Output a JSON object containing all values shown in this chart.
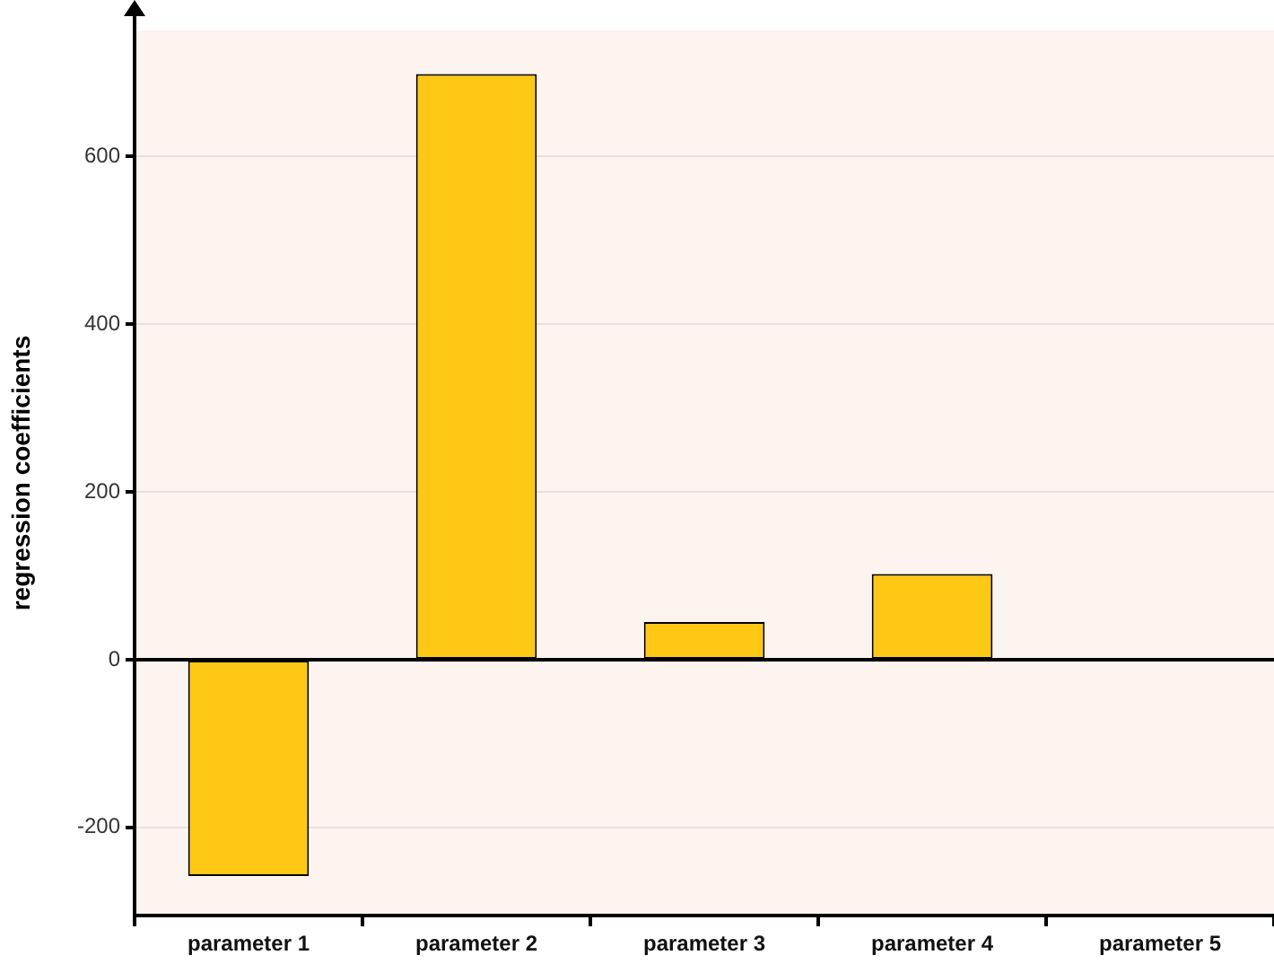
{
  "chart_data": {
    "type": "bar",
    "ylabel": "regression coefficients",
    "categories": [
      "parameter 1",
      "parameter 2",
      "parameter 3",
      "parameter 4",
      "parameter 5"
    ],
    "values": [
      -258,
      698,
      45,
      102,
      0
    ],
    "color": "#fec814",
    "ylim": [
      -305,
      750
    ],
    "yticks": [
      -200,
      0,
      200,
      400,
      600
    ],
    "grid": "y",
    "legend": false,
    "ref_lines": [
      {
        "axis": "y",
        "value": 0,
        "color": "#000000"
      }
    ]
  }
}
